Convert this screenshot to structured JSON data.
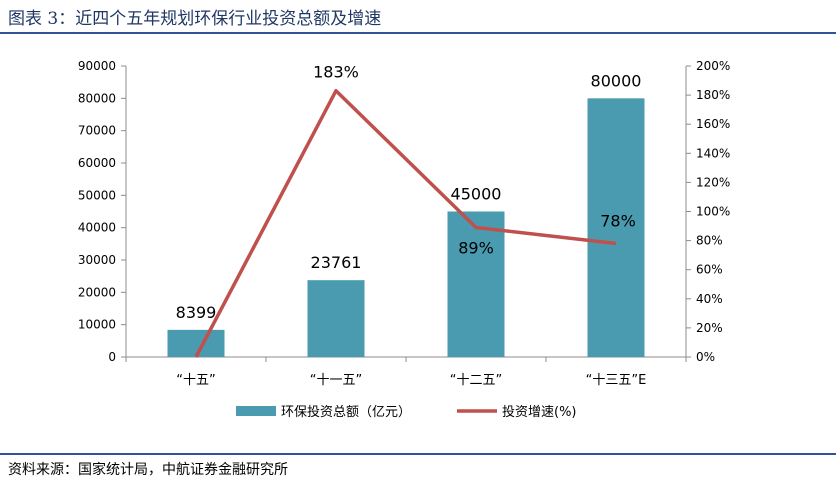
{
  "title": "图表 3：近四个五年规划环保行业投资总额及增速",
  "source": "资料来源：国家统计局，中航证券金融研究所",
  "chart_data": {
    "type": "bar",
    "categories": [
      "“十五”",
      "“十一五”",
      "“十二五”",
      "“十三五”E"
    ],
    "series": [
      {
        "name": "环保投资总额（亿元）",
        "type": "bar",
        "axis": "left",
        "values": [
          8399,
          23761,
          45000,
          80000
        ],
        "labels": [
          "8399",
          "23761",
          "45000",
          "80000"
        ],
        "color": "#4a9bb0"
      },
      {
        "name": "投资增速(%)",
        "type": "line",
        "axis": "right",
        "values": [
          0,
          183,
          89,
          78
        ],
        "labels": [
          "",
          "183%",
          "89%",
          "78%"
        ],
        "color": "#c0504d"
      }
    ],
    "y_left": {
      "min": 0,
      "max": 90000,
      "ticks": [
        "0",
        "10000",
        "20000",
        "30000",
        "40000",
        "50000",
        "60000",
        "70000",
        "80000",
        "90000"
      ]
    },
    "y_right": {
      "min": 0,
      "max": 200,
      "ticks": [
        "0%",
        "20%",
        "40%",
        "60%",
        "80%",
        "100%",
        "120%",
        "140%",
        "160%",
        "180%",
        "200%"
      ]
    },
    "legend_position": "bottom",
    "grid": false
  }
}
